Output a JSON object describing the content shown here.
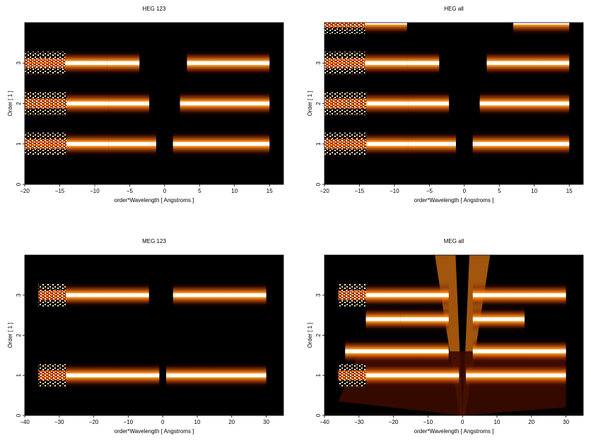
{
  "chart_data": [
    {
      "type": "heatmap",
      "title": "HEG 123",
      "xlabel": "order*Wavelength [ Angstroms ]",
      "ylabel": "Order [ 1 ]",
      "xlim": [
        -20,
        17
      ],
      "ylim": [
        0,
        4
      ],
      "xticks": [
        -20,
        -15,
        -10,
        -5,
        0,
        5,
        10,
        15
      ],
      "yticks": [
        0,
        1,
        2,
        3
      ],
      "background": "#000000",
      "bands": [
        {
          "order": 3,
          "segments": [
            [
              -20,
              -14.2
            ],
            [
              -14.2,
              -8.2
            ],
            [
              -8.2,
              -3.6
            ],
            [
              3.2,
              15
            ]
          ]
        },
        {
          "order": 2,
          "segments": [
            [
              -20,
              -14
            ],
            [
              -14,
              -8
            ],
            [
              -8,
              -2.2
            ],
            [
              2.2,
              15
            ]
          ]
        },
        {
          "order": 1,
          "segments": [
            [
              -20,
              -14
            ],
            [
              -14,
              -8
            ],
            [
              -8,
              -1.2
            ],
            [
              1.2,
              15
            ]
          ]
        }
      ]
    },
    {
      "type": "heatmap",
      "title": "HEG all",
      "xlabel": "order*Wavelength [ Angstroms ]",
      "ylabel": "Order [ 1 ]",
      "xlim": [
        -20,
        17
      ],
      "ylim": [
        0,
        4
      ],
      "xticks": [
        -20,
        -15,
        -10,
        -5,
        0,
        5,
        10,
        15
      ],
      "yticks": [
        0,
        1,
        2,
        3
      ],
      "background": "#000000",
      "bands": [
        {
          "order": 4,
          "segments": [
            [
              -20,
              -14.2
            ],
            [
              -14.2,
              -8.2
            ],
            [
              7,
              15
            ]
          ]
        },
        {
          "order": 3,
          "segments": [
            [
              -20,
              -14.2
            ],
            [
              -14.2,
              -8.2
            ],
            [
              -8.2,
              -3.6
            ],
            [
              3.2,
              15
            ]
          ]
        },
        {
          "order": 2,
          "segments": [
            [
              -20,
              -14
            ],
            [
              -14,
              -8
            ],
            [
              -8,
              -2.2
            ],
            [
              2.2,
              15
            ]
          ]
        },
        {
          "order": 1,
          "segments": [
            [
              -20,
              -14
            ],
            [
              -14,
              -8
            ],
            [
              -8,
              -1.2
            ],
            [
              1.2,
              15
            ]
          ]
        }
      ]
    },
    {
      "type": "heatmap",
      "title": "MEG 123",
      "xlabel": "order*Wavelength [ Angstroms ]",
      "ylabel": "Order [ 1 ]",
      "xlim": [
        -40,
        35
      ],
      "ylim": [
        0,
        4
      ],
      "xticks": [
        -40,
        -30,
        -20,
        -10,
        0,
        10,
        20,
        30
      ],
      "yticks": [
        0,
        1,
        2,
        3
      ],
      "background": "#000000",
      "bands": [
        {
          "order": 3,
          "segments": [
            [
              -36,
              -28
            ],
            [
              -28,
              -4
            ],
            [
              3,
              30
            ]
          ]
        },
        {
          "order": 1,
          "segments": [
            [
              -36,
              -28
            ],
            [
              -28,
              -1
            ],
            [
              1,
              30
            ]
          ]
        }
      ]
    },
    {
      "type": "heatmap",
      "title": "MEG all",
      "xlabel": "order*Wavelength [ Angstroms ]",
      "ylabel": "Order [ 1 ]",
      "xlim": [
        -40,
        35
      ],
      "ylim": [
        0,
        4
      ],
      "xticks": [
        -40,
        -30,
        -20,
        -10,
        0,
        10,
        20,
        30
      ],
      "yticks": [
        0,
        1,
        2,
        3
      ],
      "background": "#000000",
      "bands": [
        {
          "order": 3,
          "segments": [
            [
              -36,
              -28
            ],
            [
              -28,
              -4
            ],
            [
              3,
              30
            ]
          ]
        },
        {
          "order": 2.4,
          "segments": [
            [
              -28,
              -18
            ],
            [
              -18,
              -4
            ],
            [
              3,
              18
            ]
          ]
        },
        {
          "order": 1.6,
          "segments": [
            [
              -34,
              -4
            ],
            [
              3,
              30
            ]
          ]
        },
        {
          "order": 1,
          "segments": [
            [
              -36,
              -28
            ],
            [
              -28,
              -1
            ],
            [
              1,
              30
            ]
          ]
        }
      ]
    }
  ]
}
